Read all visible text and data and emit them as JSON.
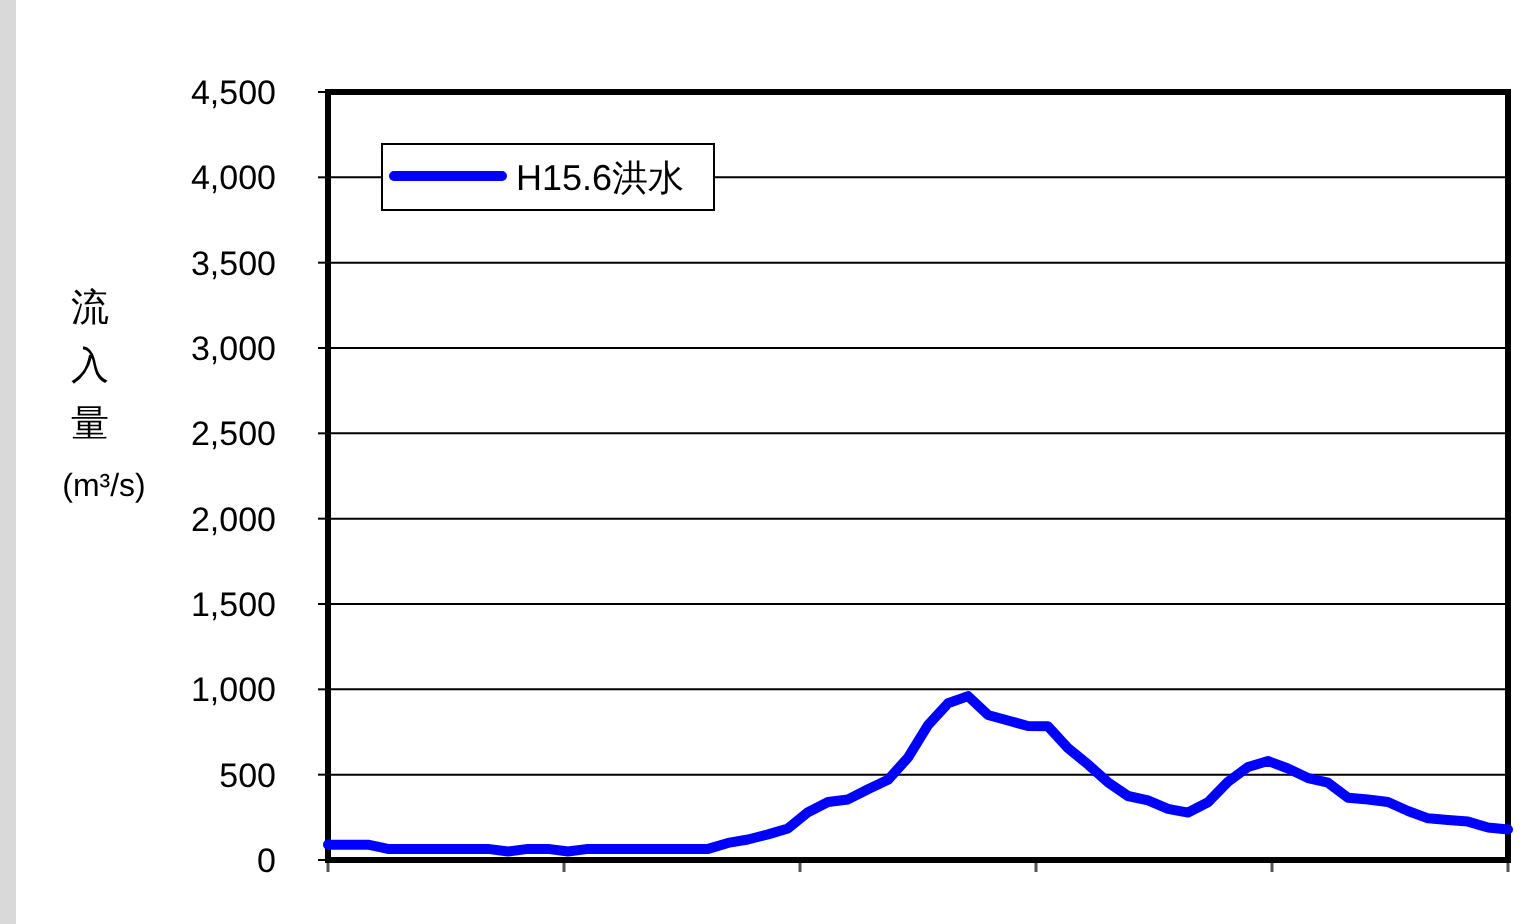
{
  "chart_data": {
    "type": "line",
    "ylabel": "流入量(m³/s)",
    "legend": "top left",
    "grid": "y",
    "marker": "none",
    "line_style": "solid",
    "categories": [
      null,
      null,
      null,
      null,
      null,
      null,
      null,
      null,
      null,
      null,
      null,
      null,
      null,
      null,
      null,
      null,
      null,
      null,
      null,
      null,
      null,
      null,
      null,
      null,
      null,
      null,
      null,
      null,
      null,
      null,
      null,
      null,
      null,
      null,
      null,
      null,
      null,
      null,
      null,
      null,
      null,
      null,
      null,
      null,
      null,
      null,
      null,
      null,
      null,
      null,
      null,
      null,
      null,
      null,
      null,
      null,
      null,
      null,
      null,
      null
    ],
    "ylim": [
      0,
      4500
    ],
    "yticks": [
      {
        "value": 0,
        "label": "0"
      },
      {
        "value": 500,
        "label": "500"
      },
      {
        "value": 1000,
        "label": "1,000"
      },
      {
        "value": 1500,
        "label": "1,500"
      },
      {
        "value": 2000,
        "label": "2,000"
      },
      {
        "value": 2500,
        "label": "2,500"
      },
      {
        "value": 3000,
        "label": "3,000"
      },
      {
        "value": 3500,
        "label": "3,500"
      },
      {
        "value": 4000,
        "label": "4,000"
      },
      {
        "value": 4500,
        "label": "4,500"
      }
    ],
    "series": [
      {
        "name": "H15.6洪水",
        "color": "#0000ff",
        "values": [
          90,
          90,
          90,
          65,
          65,
          65,
          65,
          65,
          65,
          50,
          65,
          65,
          50,
          65,
          65,
          65,
          65,
          65,
          65,
          65,
          100,
          120,
          150,
          185,
          280,
          340,
          355,
          415,
          470,
          600,
          790,
          918,
          960,
          850,
          817,
          785,
          783,
          655,
          560,
          455,
          375,
          349,
          300,
          278,
          338,
          458,
          545,
          580,
          536,
          480,
          453,
          365,
          355,
          340,
          287,
          244,
          235,
          225,
          190,
          179
        ]
      }
    ]
  }
}
